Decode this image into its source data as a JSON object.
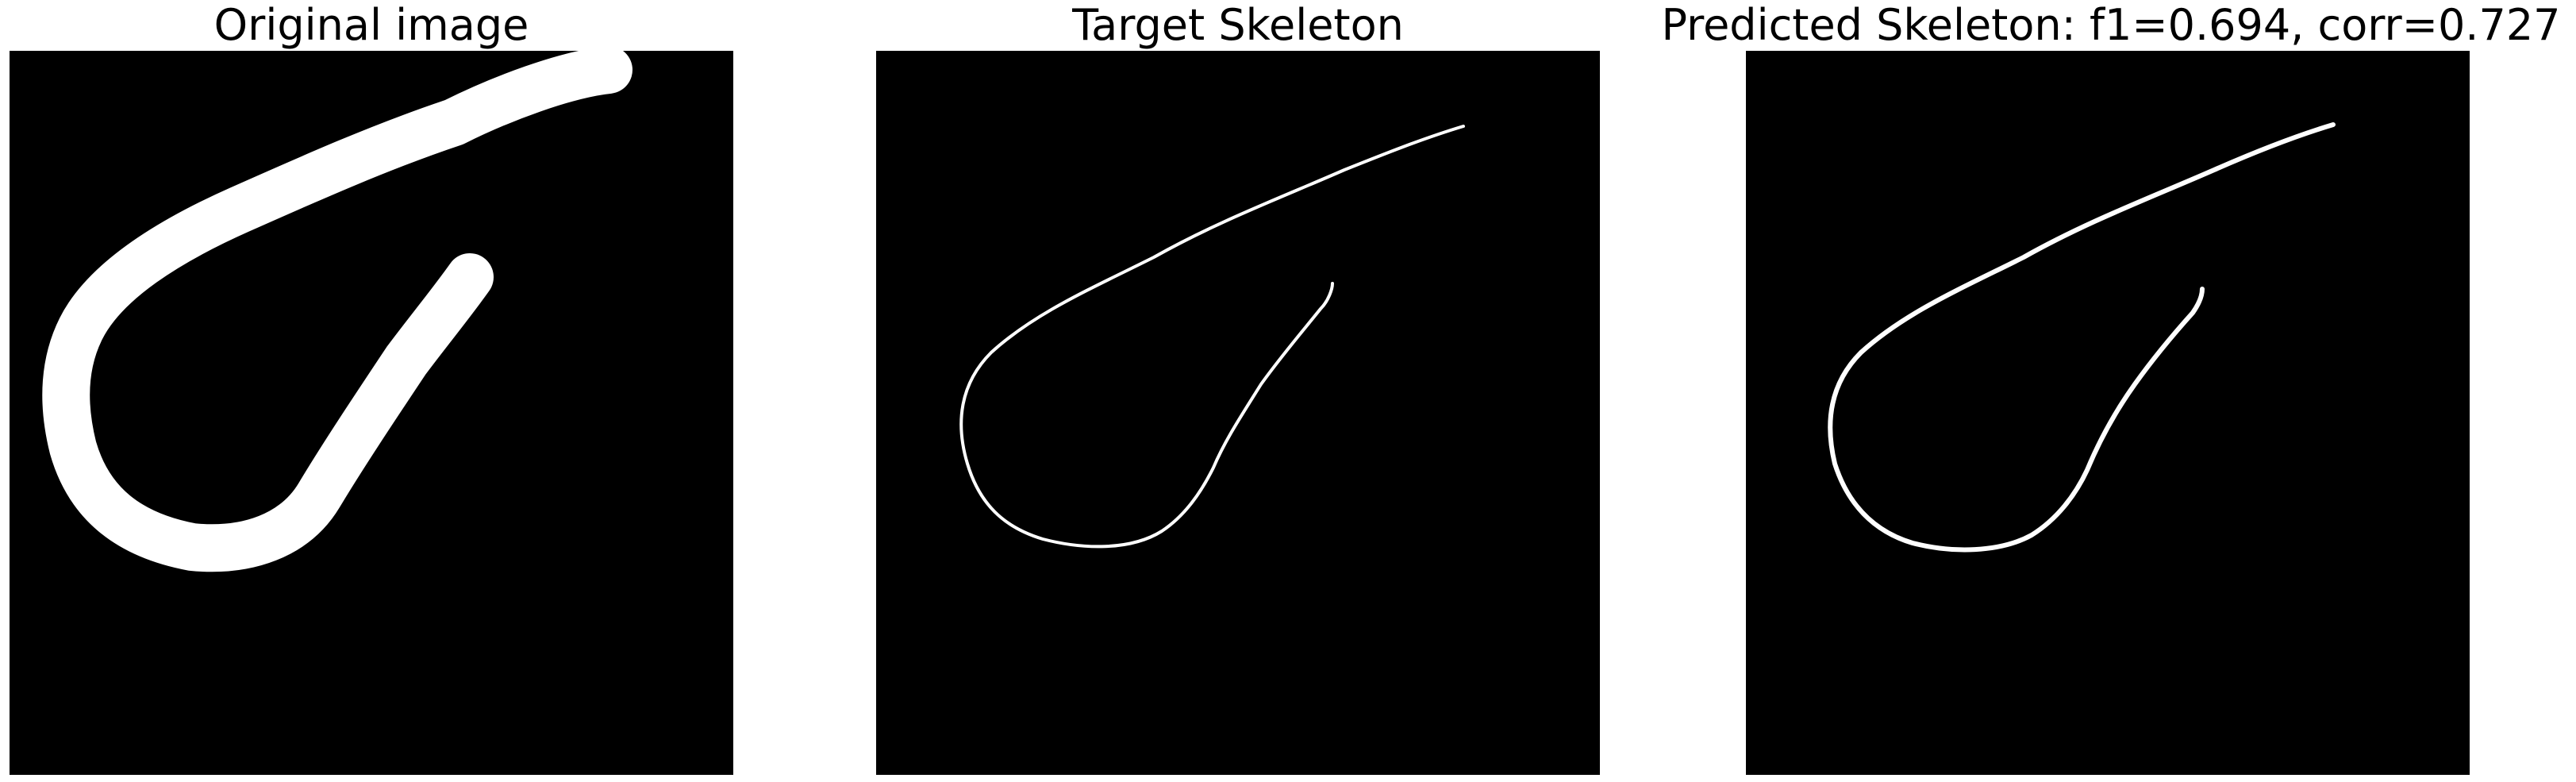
{
  "panels": [
    {
      "title": "Original image",
      "content": "stroke-image",
      "stroke_color": "#ffffff",
      "background_color": "#000000"
    },
    {
      "title": "Target Skeleton",
      "content": "skeleton-image",
      "stroke_color": "#ffffff",
      "background_color": "#000000"
    },
    {
      "title": "Predicted Skeleton: f1=0.694, corr=0.727",
      "content": "skeleton-image",
      "stroke_color": "#ffffff",
      "background_color": "#000000"
    }
  ]
}
